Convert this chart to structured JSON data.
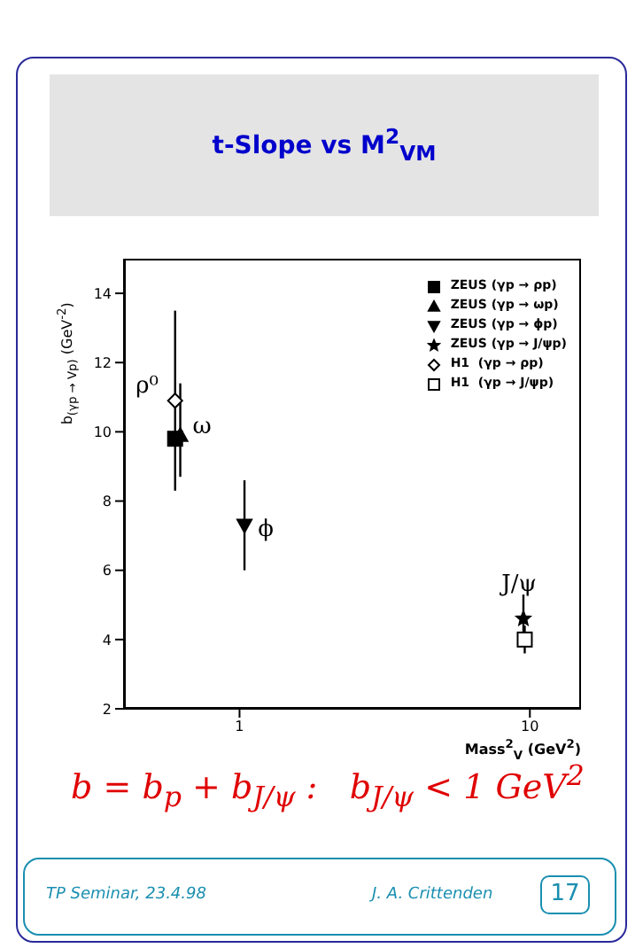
{
  "chart_data": {
    "type": "scatter",
    "title": "t-Slope vs M$^{2}$$_{VM}$",
    "xlabel": "Mass$^{2}$$_{V}$ (GeV$^{2}$)",
    "ylabel": "b$_{(γp → Vp)}$ (GeV$^{-2}$)",
    "log": "x",
    "xlim": [
      0.4,
      15
    ],
    "xticks": [
      1,
      10
    ],
    "ylim": [
      2,
      15
    ],
    "yticks": [
      2,
      4,
      6,
      8,
      10,
      12,
      14
    ],
    "legend": "top right",
    "series": [
      {
        "name": "ZEUS (γp → ρp)",
        "color": "#000000",
        "marker": "square",
        "x": [
          0.6
        ],
        "values": [
          9.8
        ],
        "errors": [
          null
        ]
      },
      {
        "name": "ZEUS (γp → ωp)",
        "color": "#000000",
        "marker": "triangle",
        "x": [
          0.625
        ],
        "values": [
          9.9
        ],
        "errors": [
          [
            8.7,
            11.4
          ]
        ]
      },
      {
        "name": "ZEUS (γp → ϕp)",
        "color": "#000000",
        "marker": "triangle-down",
        "x": [
          1.04
        ],
        "values": [
          7.3
        ],
        "errors": [
          1.3
        ]
      },
      {
        "name": "ZEUS (γp → J/ψp)",
        "color": "#000000",
        "marker": "star",
        "x": [
          9.5
        ],
        "values": [
          4.6
        ],
        "errors": [
          [
            3.9,
            5.3
          ]
        ]
      },
      {
        "name": "H1  (γp → ρp)",
        "color": "#000000",
        "marker": "diamond-open",
        "x": [
          0.6
        ],
        "values": [
          10.9
        ],
        "errors": [
          2.6
        ]
      },
      {
        "name": "H1  (γp → J/ψp)",
        "color": "#000000",
        "marker": "square-open",
        "x": [
          9.6
        ],
        "values": [
          4.0
        ],
        "errors": [
          0.4
        ]
      }
    ],
    "annotations": [
      "ρ⁰",
      "ω",
      "ϕ",
      "J/ψ",
      "b = b$_{p}$ + b$_{J/ψ}$ :   b$_{J/ψ}$ < 1 GeV$^{2}$",
      "TP Seminar, 23.4.98",
      "J. A. Crittenden",
      "17"
    ]
  }
}
